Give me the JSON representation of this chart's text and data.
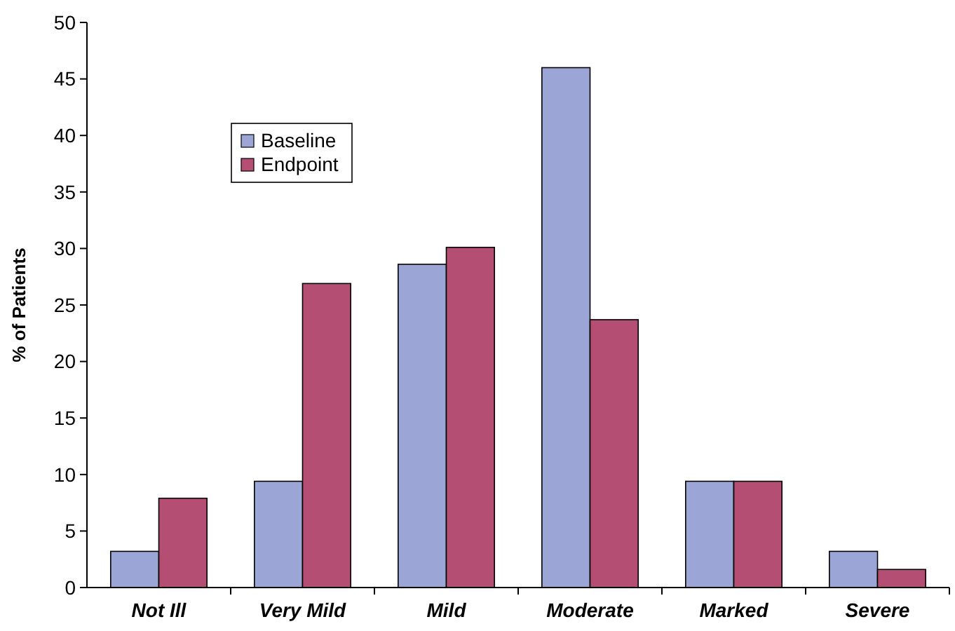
{
  "chart_data": {
    "type": "bar",
    "ylabel": "% of Patients",
    "categories": [
      "Not Ill",
      "Very Mild",
      "Mild",
      "Moderate",
      "Marked",
      "Severe"
    ],
    "series": [
      {
        "name": "Baseline",
        "color": "#9ca6d6",
        "values": [
          3.2,
          9.4,
          28.6,
          46,
          9.4,
          3.2
        ]
      },
      {
        "name": "Endpoint",
        "color": "#b44e72",
        "values": [
          7.9,
          26.9,
          30.1,
          23.7,
          9.4,
          1.6
        ]
      }
    ],
    "ylim": [
      0,
      50
    ],
    "yticks": [
      0,
      5,
      10,
      15,
      20,
      25,
      30,
      35,
      40,
      45,
      50
    ],
    "grid": false,
    "legend": "top left"
  }
}
